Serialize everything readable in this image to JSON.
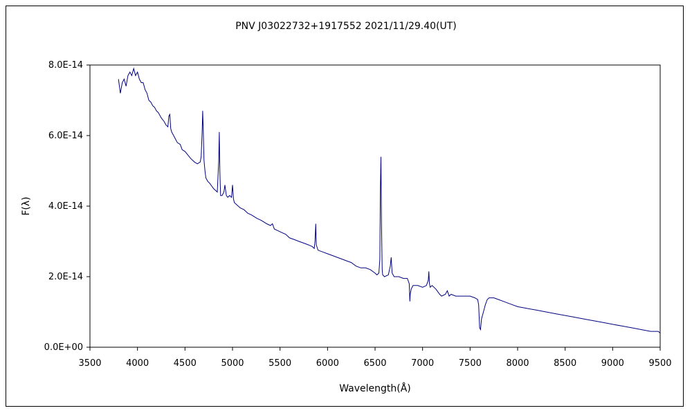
{
  "chart_data": {
    "type": "line",
    "title": "PNV J03022732+1917552    2021/11/29.40(UT)",
    "xlabel": "Wavelength(Å)",
    "ylabel": "F(λ)",
    "xlim": [
      3500,
      9500
    ],
    "ylim": [
      0,
      8e-14
    ],
    "x_ticks": [
      3500,
      4000,
      4500,
      5000,
      5500,
      6000,
      6500,
      7000,
      7500,
      8000,
      8500,
      9000,
      9500
    ],
    "x_tick_labels": [
      "3500",
      "4000",
      "4500",
      "5000",
      "5500",
      "6000",
      "6500",
      "7000",
      "7500",
      "8000",
      "8500",
      "9000",
      "9500"
    ],
    "y_ticks": [
      0,
      2e-14,
      4e-14,
      6e-14,
      8e-14
    ],
    "y_tick_labels": [
      "0.0E+00",
      "2.0E-14",
      "4.0E-14",
      "6.0E-14",
      "8.0E-14"
    ],
    "grid": false,
    "line_color": "#000080",
    "series": [
      {
        "x": [
          3800,
          3820,
          3840,
          3860,
          3880,
          3900,
          3920,
          3940,
          3960,
          3980,
          4000,
          4020,
          4040,
          4060,
          4080,
          4100,
          4120,
          4140,
          4160,
          4180,
          4200,
          4220,
          4250,
          4280,
          4300,
          4320,
          4330,
          4340,
          4350,
          4360,
          4380,
          4400,
          4420,
          4450,
          4470,
          4500,
          4530,
          4560,
          4600,
          4630,
          4660,
          4670,
          4680,
          4686,
          4692,
          4700,
          4710,
          4720,
          4740,
          4760,
          4800,
          4840,
          4855,
          4861,
          4867,
          4875,
          4890,
          4910,
          4920,
          4935,
          4950,
          4970,
          4990,
          5000,
          5010,
          5020,
          5040,
          5080,
          5120,
          5160,
          5200,
          5260,
          5300,
          5360,
          5400,
          5420,
          5440,
          5480,
          5520,
          5560,
          5600,
          5650,
          5700,
          5750,
          5800,
          5840,
          5860,
          5868,
          5876,
          5882,
          5900,
          5950,
          6000,
          6050,
          6100,
          6150,
          6200,
          6250,
          6300,
          6350,
          6400,
          6450,
          6500,
          6520,
          6540,
          6550,
          6556,
          6562,
          6568,
          6575,
          6580,
          6600,
          6640,
          6660,
          6670,
          6680,
          6700,
          6750,
          6800,
          6840,
          6860,
          6866,
          6870,
          6880,
          6900,
          6950,
          7000,
          7040,
          7060,
          7066,
          7072,
          7080,
          7100,
          7140,
          7180,
          7200,
          7240,
          7260,
          7280,
          7300,
          7350,
          7400,
          7450,
          7500,
          7550,
          7580,
          7590,
          7600,
          7610,
          7620,
          7640,
          7660,
          7680,
          7700,
          7750,
          7800,
          7850,
          7900,
          7950,
          8000,
          8100,
          8200,
          8300,
          8400,
          8500,
          8600,
          8700,
          8800,
          8900,
          9000,
          9100,
          9200,
          9300,
          9400,
          9450,
          9480,
          9500
        ],
        "y": [
          7.6e-14,
          7.2e-14,
          7.5e-14,
          7.6e-14,
          7.4e-14,
          7.7e-14,
          7.8e-14,
          7.7e-14,
          7.9e-14,
          7.7e-14,
          7.8e-14,
          7.6e-14,
          7.5e-14,
          7.5e-14,
          7.3e-14,
          7.2e-14,
          7e-14,
          6.95e-14,
          6.85e-14,
          6.8e-14,
          6.7e-14,
          6.65e-14,
          6.5e-14,
          6.4e-14,
          6.3e-14,
          6.25e-14,
          6.55e-14,
          6.6e-14,
          6.2e-14,
          6.1e-14,
          6e-14,
          5.9e-14,
          5.8e-14,
          5.75e-14,
          5.6e-14,
          5.55e-14,
          5.45e-14,
          5.35e-14,
          5.25e-14,
          5.2e-14,
          5.25e-14,
          5.4e-14,
          6.1e-14,
          6.7e-14,
          6.2e-14,
          5.3e-14,
          5e-14,
          4.8e-14,
          4.7e-14,
          4.65e-14,
          4.5e-14,
          4.4e-14,
          5.3e-14,
          6.1e-14,
          5e-14,
          4.3e-14,
          4.3e-14,
          4.4e-14,
          4.6e-14,
          4.3e-14,
          4.25e-14,
          4.3e-14,
          4.25e-14,
          4.6e-14,
          4.2e-14,
          4.1e-14,
          4.05e-14,
          3.95e-14,
          3.9e-14,
          3.8e-14,
          3.75e-14,
          3.65e-14,
          3.6e-14,
          3.5e-14,
          3.45e-14,
          3.5e-14,
          3.35e-14,
          3.3e-14,
          3.25e-14,
          3.2e-14,
          3.1e-14,
          3.05e-14,
          3e-14,
          2.95e-14,
          2.9e-14,
          2.85e-14,
          2.8e-14,
          3e-14,
          3.5e-14,
          2.9e-14,
          2.75e-14,
          2.7e-14,
          2.65e-14,
          2.6e-14,
          2.55e-14,
          2.5e-14,
          2.45e-14,
          2.4e-14,
          2.3e-14,
          2.25e-14,
          2.25e-14,
          2.2e-14,
          2.1e-14,
          2.05e-14,
          2.1e-14,
          2.5e-14,
          4.5e-14,
          5.4e-14,
          3.5e-14,
          2.2e-14,
          2.05e-14,
          2e-14,
          2.05e-14,
          2.3e-14,
          2.55e-14,
          2.1e-14,
          2e-14,
          2e-14,
          1.95e-14,
          1.95e-14,
          1.8e-14,
          1.3e-14,
          1.5e-14,
          1.65e-14,
          1.75e-14,
          1.75e-14,
          1.7e-14,
          1.75e-14,
          1.9e-14,
          2.15e-14,
          1.8e-14,
          1.7e-14,
          1.75e-14,
          1.65e-14,
          1.5e-14,
          1.45e-14,
          1.5e-14,
          1.6e-14,
          1.45e-14,
          1.5e-14,
          1.45e-14,
          1.45e-14,
          1.45e-14,
          1.45e-14,
          1.4e-14,
          1.35e-14,
          1.2e-14,
          5.5e-15,
          5e-15,
          8e-15,
          1e-14,
          1.2e-14,
          1.35e-14,
          1.4e-14,
          1.4e-14,
          1.35e-14,
          1.3e-14,
          1.25e-14,
          1.2e-14,
          1.15e-14,
          1.1e-14,
          1.05e-14,
          1e-14,
          9.5e-15,
          9e-15,
          8.5e-15,
          8e-15,
          7.5e-15,
          7e-15,
          6.5e-15,
          6e-15,
          5.5e-15,
          5e-15,
          4.5e-15,
          4.5e-15,
          4.5e-15,
          4e-15
        ]
      }
    ]
  }
}
